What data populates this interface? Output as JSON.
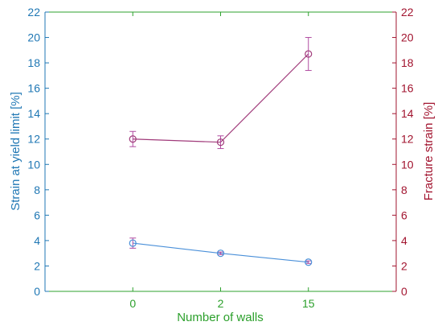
{
  "chart_data": {
    "type": "line",
    "xlabel": "Number of walls",
    "ylabel_left": "Strain at yield limit [%]",
    "ylabel_right": "Fracture strain [%]",
    "categories": [
      "0",
      "2",
      "15"
    ],
    "ylim_left": [
      0,
      22
    ],
    "ylim_right": [
      0,
      22
    ],
    "yticks": [
      "0",
      "2",
      "4",
      "6",
      "8",
      "10",
      "12",
      "14",
      "16",
      "18",
      "20",
      "22"
    ],
    "grid": false,
    "colors": {
      "left_axis": "#1f77b4",
      "right_axis": "#a2142f",
      "x_axis": "#2ca02c",
      "yield_series": "#4a90d9",
      "fracture_series": "#a03a7a",
      "error_bars": "#b04aa0"
    },
    "series": [
      {
        "axis": "left",
        "values": [
          3.8,
          3.0,
          2.3
        ],
        "errors": [
          0.4,
          0.1,
          0.1
        ]
      },
      {
        "axis": "right",
        "values": [
          12.0,
          11.75,
          18.7
        ],
        "errors": [
          0.6,
          0.5,
          1.3
        ]
      }
    ]
  }
}
